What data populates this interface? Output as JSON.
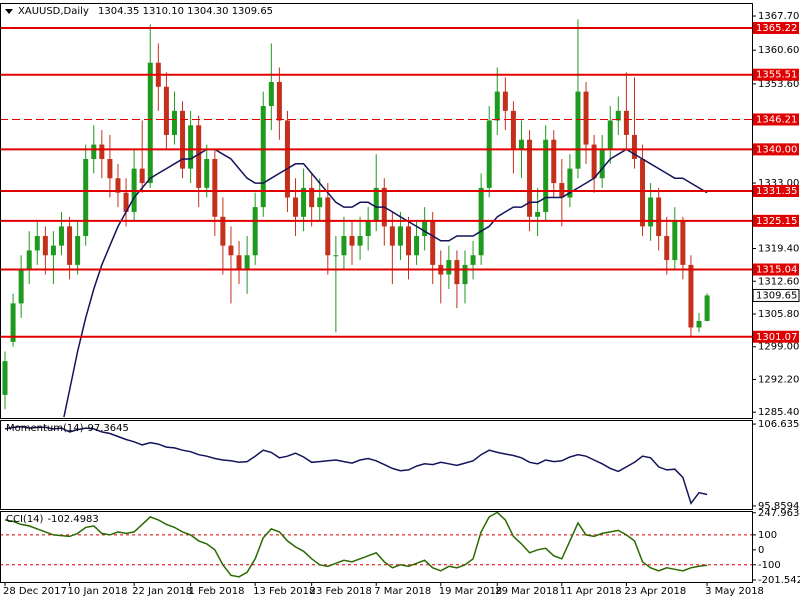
{
  "chart_data": {
    "type": "candlestick",
    "title": "XAUUSD,Daily",
    "last_labels": [
      "1304.35",
      "1310.10",
      "1304.30",
      "1309.65"
    ],
    "categories": [
      "28 Dec 2017",
      null,
      null,
      null,
      null,
      null,
      null,
      null,
      "10 Jan 2018",
      null,
      null,
      null,
      null,
      null,
      null,
      null,
      "22 Jan 2018",
      null,
      null,
      null,
      null,
      null,
      null,
      "1 Feb 2018",
      null,
      null,
      null,
      null,
      null,
      null,
      null,
      "13 Feb 2018",
      null,
      null,
      null,
      null,
      null,
      null,
      "23 Feb 2018",
      null,
      null,
      null,
      null,
      null,
      null,
      null,
      "7 Mar 2018",
      null,
      null,
      null,
      null,
      null,
      null,
      null,
      "19 Mar 2018",
      null,
      null,
      null,
      null,
      null,
      null,
      "29 Mar 2018",
      null,
      null,
      null,
      null,
      null,
      null,
      null,
      "11 Apr 2018",
      null,
      null,
      null,
      null,
      null,
      null,
      null,
      "23 Apr 2018",
      null,
      null,
      null,
      null,
      null,
      null,
      null,
      null,
      null,
      "3 May 2018"
    ],
    "ohlc": [
      [
        1289,
        1298,
        1286,
        1296
      ],
      [
        1300,
        1310,
        1299,
        1308
      ],
      [
        1308,
        1318,
        1305,
        1315
      ],
      [
        1315,
        1323,
        1312,
        1319
      ],
      [
        1319,
        1325,
        1316,
        1322
      ],
      [
        1322,
        1324,
        1314,
        1318
      ],
      [
        1318,
        1323,
        1312,
        1320
      ],
      [
        1320,
        1327,
        1318,
        1324
      ],
      [
        1324,
        1326,
        1313,
        1316
      ],
      [
        1316,
        1325,
        1314,
        1322
      ],
      [
        1322,
        1341,
        1320,
        1338
      ],
      [
        1338,
        1345,
        1335,
        1341
      ],
      [
        1341,
        1344,
        1334,
        1338
      ],
      [
        1338,
        1343,
        1330,
        1334
      ],
      [
        1334,
        1337,
        1328,
        1331
      ],
      [
        1331,
        1334,
        1324,
        1327
      ],
      [
        1327,
        1340,
        1325,
        1336
      ],
      [
        1336,
        1346,
        1331,
        1333
      ],
      [
        1333,
        1366,
        1332,
        1358
      ],
      [
        1358,
        1362,
        1348,
        1353
      ],
      [
        1353,
        1356,
        1340,
        1343
      ],
      [
        1343,
        1352,
        1341,
        1348
      ],
      [
        1348,
        1350,
        1334,
        1336
      ],
      [
        1336,
        1348,
        1333,
        1345
      ],
      [
        1345,
        1347,
        1328,
        1332
      ],
      [
        1332,
        1341,
        1330,
        1338
      ],
      [
        1338,
        1340,
        1322,
        1326
      ],
      [
        1326,
        1330,
        1314,
        1320
      ],
      [
        1320,
        1324,
        1308,
        1318
      ],
      [
        1318,
        1321,
        1312,
        1315
      ],
      [
        1315,
        1322,
        1310,
        1318
      ],
      [
        1318,
        1331,
        1316,
        1328
      ],
      [
        1328,
        1352,
        1326,
        1349
      ],
      [
        1349,
        1362,
        1344,
        1354
      ],
      [
        1354,
        1357,
        1342,
        1346
      ],
      [
        1346,
        1348,
        1327,
        1330
      ],
      [
        1330,
        1334,
        1322,
        1326
      ],
      [
        1326,
        1336,
        1323,
        1332
      ],
      [
        1332,
        1335,
        1324,
        1328
      ],
      [
        1328,
        1334,
        1325,
        1330
      ],
      [
        1330,
        1333,
        1314,
        1318
      ],
      [
        1318,
        1322,
        1302,
        1318
      ],
      [
        1318,
        1326,
        1315,
        1322
      ],
      [
        1322,
        1325,
        1316,
        1320
      ],
      [
        1320,
        1326,
        1317,
        1322
      ],
      [
        1322,
        1328,
        1319,
        1325
      ],
      [
        1325,
        1339,
        1323,
        1332
      ],
      [
        1332,
        1334,
        1320,
        1324
      ],
      [
        1324,
        1327,
        1312,
        1320
      ],
      [
        1320,
        1327,
        1317,
        1324
      ],
      [
        1324,
        1326,
        1313,
        1318
      ],
      [
        1318,
        1325,
        1316,
        1322
      ],
      [
        1322,
        1328,
        1319,
        1325
      ],
      [
        1325,
        1327,
        1312,
        1316
      ],
      [
        1316,
        1319,
        1308,
        1314
      ],
      [
        1314,
        1320,
        1311,
        1317
      ],
      [
        1317,
        1319,
        1307,
        1312
      ],
      [
        1312,
        1319,
        1308,
        1316
      ],
      [
        1316,
        1321,
        1313,
        1318
      ],
      [
        1318,
        1335,
        1316,
        1332
      ],
      [
        1332,
        1349,
        1330,
        1346
      ],
      [
        1346,
        1357,
        1343,
        1352
      ],
      [
        1352,
        1355,
        1344,
        1348
      ],
      [
        1348,
        1350,
        1335,
        1340
      ],
      [
        1340,
        1346,
        1334,
        1342
      ],
      [
        1342,
        1344,
        1323,
        1326
      ],
      [
        1326,
        1332,
        1322,
        1327
      ],
      [
        1327,
        1345,
        1325,
        1342
      ],
      [
        1342,
        1344,
        1330,
        1333
      ],
      [
        1333,
        1338,
        1324,
        1330
      ],
      [
        1330,
        1339,
        1328,
        1336
      ],
      [
        1336,
        1367,
        1334,
        1352
      ],
      [
        1352,
        1354,
        1337,
        1341
      ],
      [
        1341,
        1343,
        1331,
        1334
      ],
      [
        1334,
        1343,
        1332,
        1340
      ],
      [
        1340,
        1349,
        1337,
        1346
      ],
      [
        1346,
        1351,
        1343,
        1348
      ],
      [
        1348,
        1356,
        1340,
        1343
      ],
      [
        1343,
        1355,
        1336,
        1338
      ],
      [
        1338,
        1341,
        1322,
        1324
      ],
      [
        1324,
        1333,
        1321,
        1330
      ],
      [
        1330,
        1332,
        1319,
        1322
      ],
      [
        1322,
        1326,
        1314,
        1317
      ],
      [
        1317,
        1328,
        1315,
        1325
      ],
      [
        1325,
        1326,
        1313,
        1316
      ],
      [
        1316,
        1318,
        1301,
        1303
      ],
      [
        1303,
        1306,
        1302,
        1304.35
      ],
      [
        1304.35,
        1310.1,
        1304.3,
        1309.65
      ]
    ],
    "up_color": "#1e9a1e",
    "down_color": "#c4301c",
    "ma": {
      "color": "#14145a",
      "values": [
        null,
        null,
        null,
        null,
        null,
        null,
        null,
        1282,
        1290,
        1298,
        1305,
        1311,
        1316,
        1320,
        1324,
        1327,
        1330,
        1332,
        1334,
        1335,
        1336,
        1337,
        1338,
        1338,
        1339,
        1340,
        1340,
        1339,
        1338,
        1336,
        1334,
        1333,
        1333,
        1334,
        1335,
        1336,
        1337,
        1337,
        1335,
        1333,
        1331,
        1329,
        1328,
        1328,
        1329,
        1329,
        1328,
        1328,
        1327,
        1326,
        1325,
        1324,
        1323,
        1322,
        1321,
        1321,
        1322,
        1322,
        1322,
        1323,
        1324,
        1326,
        1327,
        1328,
        1328,
        1329,
        1329,
        1330,
        1330,
        1330,
        1331,
        1332,
        1333,
        1334,
        1336,
        1338,
        1339,
        1340,
        1339,
        1338,
        1337,
        1336,
        1335,
        1334,
        1334,
        1333,
        1332,
        1331
      ]
    },
    "ylim": [
      1284.4,
      1370.2
    ],
    "yticks": [
      {
        "value": 1367.7,
        "label": "1367.70"
      },
      {
        "value": 1360.6,
        "label": "1360.60"
      },
      {
        "value": 1353.6,
        "label": "1353.60"
      },
      {
        "value": 1333,
        "label": "1333.00"
      },
      {
        "value": 1319.4,
        "label": "1319.40"
      },
      {
        "value": 1312.6,
        "label": "1312.60"
      },
      {
        "value": 1305.8,
        "label": "1305.80"
      },
      {
        "value": 1299,
        "label": "1299.00"
      },
      {
        "value": 1292.2,
        "label": "1292.20"
      },
      {
        "value": 1285.4,
        "label": "1285.40"
      }
    ],
    "levels": [
      1365.22,
      1355.51,
      1346.21,
      {
        "value": 1340,
        "label": "1340.00"
      },
      1331.35,
      1325.15,
      1315.04,
      1301.07
    ],
    "level_styles": [
      "solid",
      "solid",
      "dashed",
      "solid",
      "solid",
      "solid",
      "solid",
      "solid"
    ],
    "level_color": "#e00000",
    "panels": [
      {
        "type": "line",
        "title": "Momentum(14)",
        "color": "#14145a",
        "ylim": [
          95.455,
          107.04
        ],
        "yticks": [
          106.6354,
          95.8594
        ],
        "values": [
          106,
          106.2,
          106.3,
          106.1,
          106.2,
          106.2,
          106,
          106.1,
          105.6,
          105.9,
          106.1,
          106,
          105.6,
          105.4,
          105,
          104.6,
          104.3,
          103.9,
          104.2,
          104,
          103.6,
          103.5,
          103.2,
          103,
          102.6,
          102.4,
          102.1,
          101.9,
          101.8,
          101.6,
          101.7,
          102.4,
          103.2,
          102.9,
          102.2,
          102.4,
          102.8,
          102.3,
          101.6,
          101.7,
          101.8,
          101.9,
          101.7,
          101.5,
          101.9,
          102.1,
          101.8,
          101.3,
          100.8,
          100.5,
          100.6,
          101.1,
          101.4,
          101.3,
          101.6,
          101.4,
          101.2,
          101.5,
          101.8,
          102.6,
          103.2,
          102.9,
          102.7,
          102.5,
          102.2,
          101.6,
          101.4,
          101.9,
          101.7,
          101.8,
          102.3,
          102.6,
          102.4,
          101.9,
          101.4,
          100.8,
          100.4,
          101,
          101.6,
          102.4,
          102.2,
          101,
          100.6,
          100.7,
          99.6,
          96.2,
          97.6,
          97.3645
        ]
      },
      {
        "type": "line",
        "title": "CCI(14)",
        "color": "#2a6a00",
        "ylim": [
          -215,
          253
        ],
        "yticks": [
          247.9634,
          100,
          0,
          -100,
          -201.5429
        ],
        "levels": [
          100,
          -100
        ],
        "values": [
          200,
          190,
          170,
          160,
          140,
          120,
          100,
          95,
          90,
          110,
          150,
          160,
          110,
          100,
          120,
          110,
          120,
          170,
          220,
          200,
          170,
          150,
          120,
          100,
          60,
          40,
          0,
          -100,
          -170,
          -180,
          -150,
          -60,
          80,
          140,
          120,
          60,
          20,
          -10,
          -60,
          -100,
          -110,
          -90,
          -70,
          -80,
          -60,
          -40,
          -20,
          -80,
          -120,
          -100,
          -110,
          -90,
          -70,
          -120,
          -140,
          -110,
          -120,
          -100,
          -60,
          120,
          220,
          250,
          200,
          90,
          40,
          -20,
          0,
          10,
          -40,
          -60,
          60,
          180,
          100,
          90,
          110,
          120,
          130,
          100,
          60,
          -80,
          -120,
          -140,
          -120,
          -130,
          -140,
          -120,
          -110,
          -102.4983
        ]
      }
    ]
  }
}
